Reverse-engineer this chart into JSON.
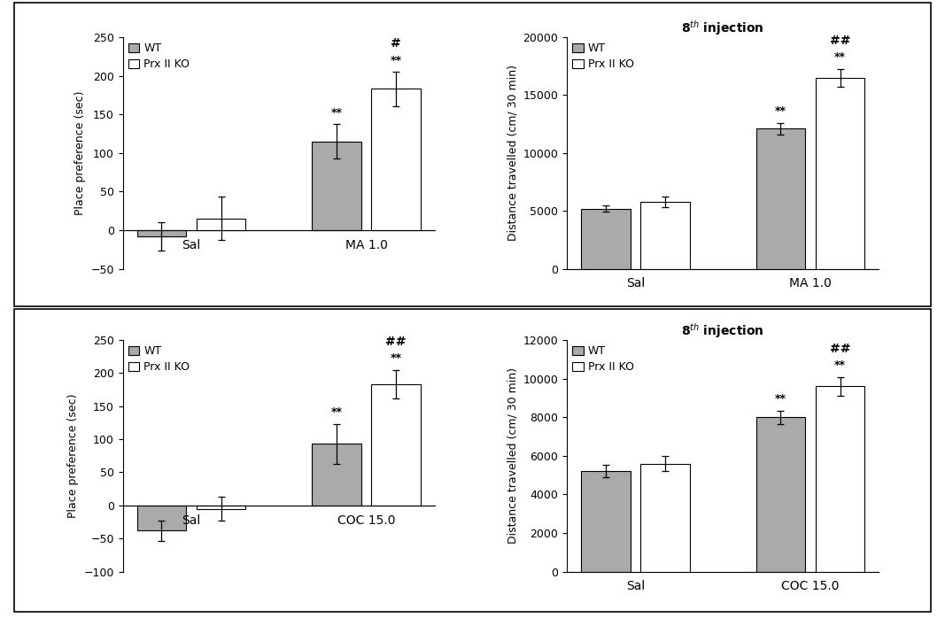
{
  "panel_A": {
    "title": "",
    "ylabel": "Place preference (sec)",
    "categories": [
      "Sal",
      "MA 1.0"
    ],
    "wt_values": [
      -8,
      115
    ],
    "ko_values": [
      15,
      183
    ],
    "wt_errors": [
      18,
      22
    ],
    "ko_errors": [
      28,
      22
    ],
    "ylim": [
      -50,
      250
    ],
    "yticks": [
      -50,
      0,
      50,
      100,
      150,
      200,
      250
    ],
    "wt_annot": [
      "",
      "**"
    ],
    "ko_annot": [
      "",
      "**"
    ],
    "ko_annot2": [
      "",
      "#"
    ],
    "bar_width": 0.28,
    "wt_color": "#aaaaaa",
    "ko_color": "#ffffff"
  },
  "panel_B": {
    "title": "8$^{th}$ injection",
    "ylabel": "Distance travelled (cm/ 30 min)",
    "categories": [
      "Sal",
      "MA 1.0"
    ],
    "wt_values": [
      5200,
      12100
    ],
    "ko_values": [
      5800,
      16500
    ],
    "wt_errors": [
      280,
      480
    ],
    "ko_errors": [
      450,
      750
    ],
    "ylim": [
      0,
      20000
    ],
    "yticks": [
      0,
      5000,
      10000,
      15000,
      20000
    ],
    "wt_annot": [
      "",
      "**"
    ],
    "ko_annot": [
      "",
      "**"
    ],
    "ko_annot2": [
      "",
      "##"
    ],
    "bar_width": 0.28,
    "wt_color": "#aaaaaa",
    "ko_color": "#ffffff"
  },
  "panel_C": {
    "title": "",
    "ylabel": "Place preference (sec)",
    "categories": [
      "Sal",
      "COC 15.0"
    ],
    "wt_values": [
      -38,
      93
    ],
    "ko_values": [
      -5,
      183
    ],
    "wt_errors": [
      15,
      30
    ],
    "ko_errors": [
      18,
      22
    ],
    "ylim": [
      -100,
      250
    ],
    "yticks": [
      -100,
      -50,
      0,
      50,
      100,
      150,
      200,
      250
    ],
    "wt_annot": [
      "",
      "**"
    ],
    "ko_annot": [
      "",
      "**"
    ],
    "ko_annot2": [
      "",
      "##"
    ],
    "bar_width": 0.28,
    "wt_color": "#aaaaaa",
    "ko_color": "#ffffff"
  },
  "panel_D": {
    "title": "8$^{th}$ injection",
    "ylabel": "Distance travelled (cm/ 30 min)",
    "categories": [
      "Sal",
      "COC 15.0"
    ],
    "wt_values": [
      5200,
      8000
    ],
    "ko_values": [
      5600,
      9600
    ],
    "wt_errors": [
      320,
      350
    ],
    "ko_errors": [
      380,
      480
    ],
    "ylim": [
      0,
      12000
    ],
    "yticks": [
      0,
      2000,
      4000,
      6000,
      8000,
      10000,
      12000
    ],
    "wt_annot": [
      "",
      "**"
    ],
    "ko_annot": [
      "",
      "**"
    ],
    "ko_annot2": [
      "",
      "##"
    ],
    "bar_width": 0.28,
    "wt_color": "#aaaaaa",
    "ko_color": "#ffffff"
  },
  "legend_wt": "WT",
  "legend_ko": "Prx II KO",
  "fontsize": 9,
  "title_fontsize": 10,
  "axis_fontsize": 9
}
